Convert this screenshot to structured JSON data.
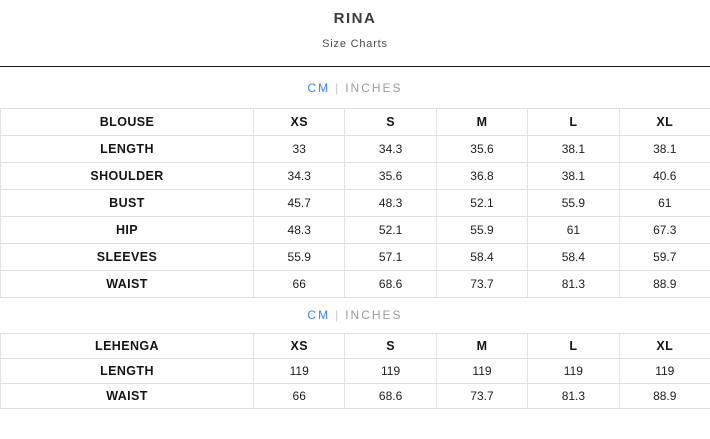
{
  "header": {
    "title": "RINA",
    "subtitle": "Size Charts"
  },
  "unit_toggle": {
    "cm_label": "CM",
    "separator": "|",
    "inches_label": "INCHES",
    "selected": "CM"
  },
  "colors": {
    "accent_blue": "#3b82e8",
    "muted_gray": "#9b9b9b",
    "separator_gray": "#c8c8c8",
    "table_border": "#e1e1e1",
    "divider_dark": "#1a1a1a",
    "text_dark": "#1d1d1d"
  },
  "tables": [
    {
      "name": "BLOUSE",
      "columns": [
        "XS",
        "S",
        "M",
        "L",
        "XL"
      ],
      "rows": [
        {
          "label": "LENGTH",
          "values": [
            "33",
            "34.3",
            "35.6",
            "38.1",
            "38.1"
          ]
        },
        {
          "label": "SHOULDER",
          "values": [
            "34.3",
            "35.6",
            "36.8",
            "38.1",
            "40.6"
          ]
        },
        {
          "label": "BUST",
          "values": [
            "45.7",
            "48.3",
            "52.1",
            "55.9",
            "61"
          ]
        },
        {
          "label": "HIP",
          "values": [
            "48.3",
            "52.1",
            "55.9",
            "61",
            "67.3"
          ]
        },
        {
          "label": "SLEEVES",
          "values": [
            "55.9",
            "57.1",
            "58.4",
            "58.4",
            "59.7"
          ]
        },
        {
          "label": "WAIST",
          "values": [
            "66",
            "68.6",
            "73.7",
            "81.3",
            "88.9"
          ]
        }
      ]
    },
    {
      "name": "LEHENGA",
      "columns": [
        "XS",
        "S",
        "M",
        "L",
        "XL"
      ],
      "rows": [
        {
          "label": "LENGTH",
          "values": [
            "119",
            "119",
            "119",
            "119",
            "119"
          ]
        },
        {
          "label": "WAIST",
          "values": [
            "66",
            "68.6",
            "73.7",
            "81.3",
            "88.9"
          ]
        }
      ]
    }
  ]
}
